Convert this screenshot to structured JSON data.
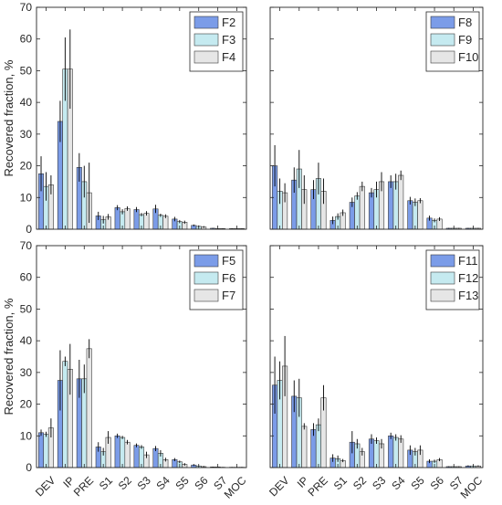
{
  "chart_data": [
    {
      "type": "bar",
      "ylabel": "Recovered fraction, %",
      "ylim": [
        0,
        70
      ],
      "yticks": [
        0,
        10,
        20,
        30,
        40,
        50,
        60,
        70
      ],
      "categories": [
        "DEV",
        "IP",
        "PRE",
        "S1",
        "S2",
        "S3",
        "S4",
        "S5",
        "S6",
        "S7",
        "MOC"
      ],
      "show_xticklabels": false,
      "legend_position": "top-right",
      "series": [
        {
          "name": "F2",
          "values": [
            17.5,
            34,
            19.5,
            4.2,
            6.8,
            6.2,
            6.4,
            3.2,
            1.2,
            0.3,
            0.2
          ],
          "errors": [
            5.5,
            6.5,
            4.5,
            1.3,
            0.8,
            0.8,
            1.3,
            0.7,
            0.3,
            0.1,
            0.1
          ]
        },
        {
          "name": "F3",
          "values": [
            13.5,
            50.5,
            15,
            3,
            5.5,
            4.6,
            4.4,
            2.4,
            0.9,
            0.2,
            0.2
          ],
          "errors": [
            4.5,
            10,
            5,
            1.2,
            0.8,
            0.5,
            0.5,
            0.5,
            0.3,
            0.1,
            0.1
          ]
        },
        {
          "name": "F4",
          "values": [
            14,
            50.5,
            11.5,
            3.9,
            6.5,
            5,
            4.1,
            2.2,
            0.7,
            0.2,
            0.2
          ],
          "errors": [
            3,
            12.5,
            9.5,
            0.9,
            0.7,
            0.7,
            0.6,
            0.5,
            0.3,
            0.1,
            0.1
          ]
        }
      ]
    },
    {
      "type": "bar",
      "ylim": [
        0,
        70
      ],
      "yticks": [
        0,
        10,
        20,
        30,
        40,
        50,
        60,
        70
      ],
      "categories": [
        "DEV",
        "IP",
        "PRE",
        "S1",
        "S2",
        "S3",
        "S4",
        "S5",
        "S6",
        "S7",
        "MOC"
      ],
      "show_xticklabels": false,
      "show_yticklabels": false,
      "legend_position": "top-right",
      "series": [
        {
          "name": "F8",
          "values": [
            20,
            15.5,
            12.5,
            2.8,
            8.5,
            11.5,
            15,
            9,
            3.5,
            0.3,
            0.3
          ],
          "errors": [
            6.5,
            4,
            3,
            1.2,
            1.5,
            1.5,
            2,
            1.2,
            0.8,
            0.1,
            0.1
          ]
        },
        {
          "name": "F9",
          "values": [
            12,
            19,
            16,
            4,
            10.5,
            12.5,
            15,
            8.5,
            2.8,
            0.3,
            0.3
          ],
          "errors": [
            4,
            6,
            5,
            1,
            1.2,
            2.5,
            2.5,
            1.2,
            0.6,
            0.1,
            0.1
          ]
        },
        {
          "name": "F10",
          "values": [
            11.5,
            12.5,
            12,
            5.2,
            13.5,
            15,
            17,
            9,
            3.2,
            0.3,
            0.3
          ],
          "errors": [
            3,
            4.5,
            4,
            1,
            1.5,
            3,
            1.5,
            0.8,
            0.6,
            0.1,
            0.1
          ]
        }
      ]
    },
    {
      "type": "bar",
      "ylabel": "Recovered fraction, %",
      "ylim": [
        0,
        70
      ],
      "yticks": [
        0,
        10,
        20,
        30,
        40,
        50,
        60,
        70
      ],
      "categories": [
        "DEV",
        "IP",
        "PRE",
        "S1",
        "S2",
        "S3",
        "S4",
        "S5",
        "S6",
        "S7",
        "MOC"
      ],
      "show_xticklabels": true,
      "legend_position": "top-right",
      "series": [
        {
          "name": "F5",
          "values": [
            11,
            27.5,
            28,
            6.5,
            10,
            7,
            6,
            2.5,
            0.8,
            0.2,
            0.1
          ],
          "errors": [
            1,
            9.5,
            6,
            1.5,
            0.7,
            0.6,
            0.8,
            0.5,
            0.3,
            0.1,
            0.1
          ]
        },
        {
          "name": "F6",
          "values": [
            10.5,
            33.5,
            28,
            5,
            9.5,
            6.5,
            4.5,
            1.8,
            0.5,
            0.2,
            0.1
          ],
          "errors": [
            0.8,
            1.5,
            4.5,
            1.2,
            0.5,
            0.6,
            1,
            0.4,
            0.2,
            0.1,
            0.1
          ]
        },
        {
          "name": "F7",
          "values": [
            12.5,
            31,
            37.5,
            9.5,
            8,
            4,
            2.5,
            1,
            0.3,
            0.1,
            0.1
          ],
          "errors": [
            3,
            8,
            3,
            2,
            0.7,
            1,
            0.6,
            0.4,
            0.2,
            0.1,
            0.1
          ]
        }
      ]
    },
    {
      "type": "bar",
      "ylim": [
        0,
        70
      ],
      "yticks": [
        0,
        10,
        20,
        30,
        40,
        50,
        60,
        70
      ],
      "categories": [
        "DEV",
        "IP",
        "PRE",
        "S1",
        "S2",
        "S3",
        "S4",
        "S5",
        "S6",
        "S7",
        "MOC"
      ],
      "show_xticklabels": true,
      "show_yticklabels": false,
      "legend_position": "top-right",
      "series": [
        {
          "name": "F11",
          "values": [
            26,
            22.5,
            12,
            3,
            8,
            9,
            10,
            5.5,
            2,
            0.3,
            0.5
          ],
          "errors": [
            9,
            5,
            2,
            1.2,
            3.5,
            1.5,
            1,
            1.5,
            0.6,
            0.1,
            0.2
          ]
        },
        {
          "name": "F12",
          "values": [
            27.5,
            22,
            13.5,
            2.8,
            7.5,
            8.5,
            9.5,
            5,
            2,
            0.3,
            0.5
          ],
          "errors": [
            6,
            6,
            2,
            1,
            1.5,
            1,
            1,
            1.2,
            0.5,
            0.1,
            0.2
          ]
        },
        {
          "name": "F13",
          "values": [
            32,
            13,
            22,
            2.2,
            5,
            7.5,
            9,
            5.5,
            2.5,
            0.3,
            0.5
          ],
          "errors": [
            9.5,
            1,
            4,
            0.5,
            1.2,
            1.5,
            1.2,
            1.5,
            0.5,
            0.1,
            0.2
          ]
        }
      ]
    }
  ],
  "colors": {
    "series": [
      "#7b9ce8",
      "#c5eaf0",
      "#e6e6e6"
    ],
    "axis": "#262626",
    "edge": "#3a3a3a"
  }
}
